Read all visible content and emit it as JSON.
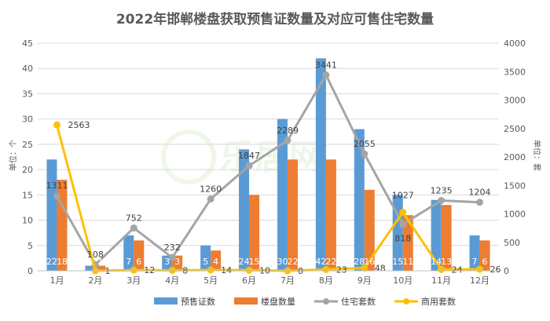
{
  "chart_data": {
    "type": "bar",
    "title": "2022年邯郸楼盘获取预售证数量及对应可售住宅数量",
    "categories": [
      "1月",
      "2月",
      "3月",
      "4月",
      "5月",
      "6月",
      "7月",
      "8月",
      "9月",
      "10月",
      "11月",
      "12月"
    ],
    "ylabel_left": "单位：个",
    "ylabel_right": "单位：套",
    "ylim_left": [
      0,
      45
    ],
    "yticks_left": [
      "0",
      "5",
      "10",
      "15",
      "20",
      "25",
      "30",
      "35",
      "40",
      "45"
    ],
    "ylim_right": [
      0,
      4000
    ],
    "yticks_right": [
      "0",
      "500",
      "1000",
      "1500",
      "2000",
      "2500",
      "3000",
      "3500",
      "4000"
    ],
    "grid": true,
    "legend_position": "bottom",
    "series": [
      {
        "name": "预售证数",
        "kind": "bar",
        "axis": "left",
        "color": "#5b9bd5",
        "values": [
          22,
          1,
          7,
          3,
          5,
          24,
          30,
          42,
          28,
          15,
          14,
          7
        ]
      },
      {
        "name": "楼盘数量",
        "kind": "bar",
        "axis": "left",
        "color": "#ed7d31",
        "values": [
          18,
          1,
          6,
          3,
          4,
          15,
          22,
          22,
          16,
          11,
          13,
          6
        ]
      },
      {
        "name": "住宅套数",
        "kind": "line",
        "axis": "right",
        "color": "#a5a5a5",
        "values": [
          1311,
          108,
          752,
          232,
          1260,
          1847,
          2289,
          3441,
          2055,
          818,
          1235,
          1204
        ]
      },
      {
        "name": "商用套数",
        "kind": "line",
        "axis": "right",
        "color": "#ffc000",
        "values": [
          2563,
          1,
          12,
          8,
          14,
          10,
          0,
          23,
          48,
          1027,
          24,
          26
        ]
      }
    ]
  }
}
